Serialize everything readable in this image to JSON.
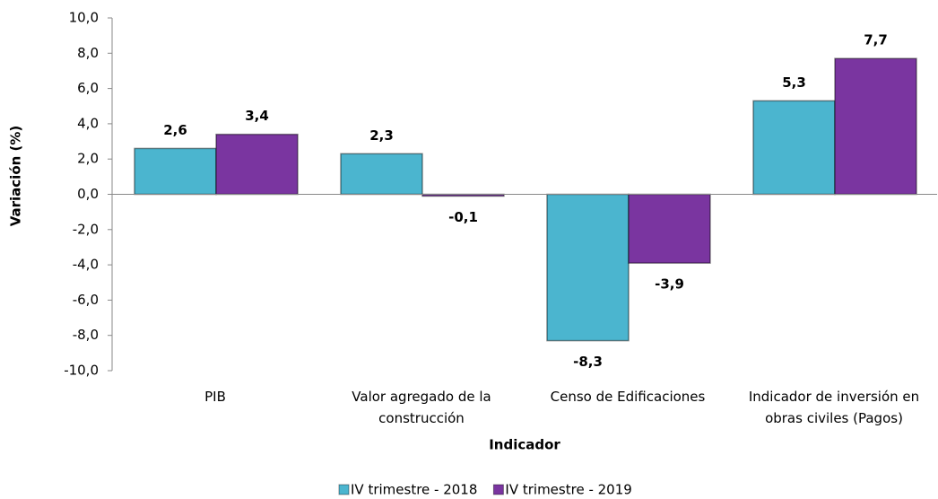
{
  "chart_data": {
    "type": "bar",
    "x_label": "Indicador",
    "y_label": "Variación  (%)",
    "categories": [
      "PIB",
      "Valor agregado de la construcción",
      "Censo de Edificaciones",
      "Indicador de inversión en obras civiles (Pagos)"
    ],
    "series": [
      {
        "name": "IV trimestre - 2018",
        "color": "#4bb5cf",
        "values": [
          2.6,
          2.3,
          -8.3,
          5.3
        ],
        "value_labels": [
          "2,6",
          "2,3",
          "-8,3",
          "5,3"
        ]
      },
      {
        "name": "IV trimestre - 2019",
        "color": "#7a35a0",
        "values": [
          3.4,
          -0.1,
          -3.9,
          7.7
        ],
        "value_labels": [
          "3,4",
          "-0,1",
          "-3,9",
          "7,7"
        ]
      }
    ],
    "ylim": [
      -10,
      10
    ],
    "yticks": [
      {
        "value": -10,
        "label": "-10,0"
      },
      {
        "value": -8,
        "label": "-8,0"
      },
      {
        "value": -6,
        "label": "-6,0"
      },
      {
        "value": -4,
        "label": "-4,0"
      },
      {
        "value": -2,
        "label": "-2,0"
      },
      {
        "value": 0,
        "label": "0,0"
      },
      {
        "value": 2,
        "label": "2,0"
      },
      {
        "value": 4,
        "label": "4,0"
      },
      {
        "value": 6,
        "label": "6,0"
      },
      {
        "value": 8,
        "label": "8,0"
      },
      {
        "value": 10,
        "label": "10,0"
      }
    ],
    "grid": false,
    "legend": "bottom"
  }
}
